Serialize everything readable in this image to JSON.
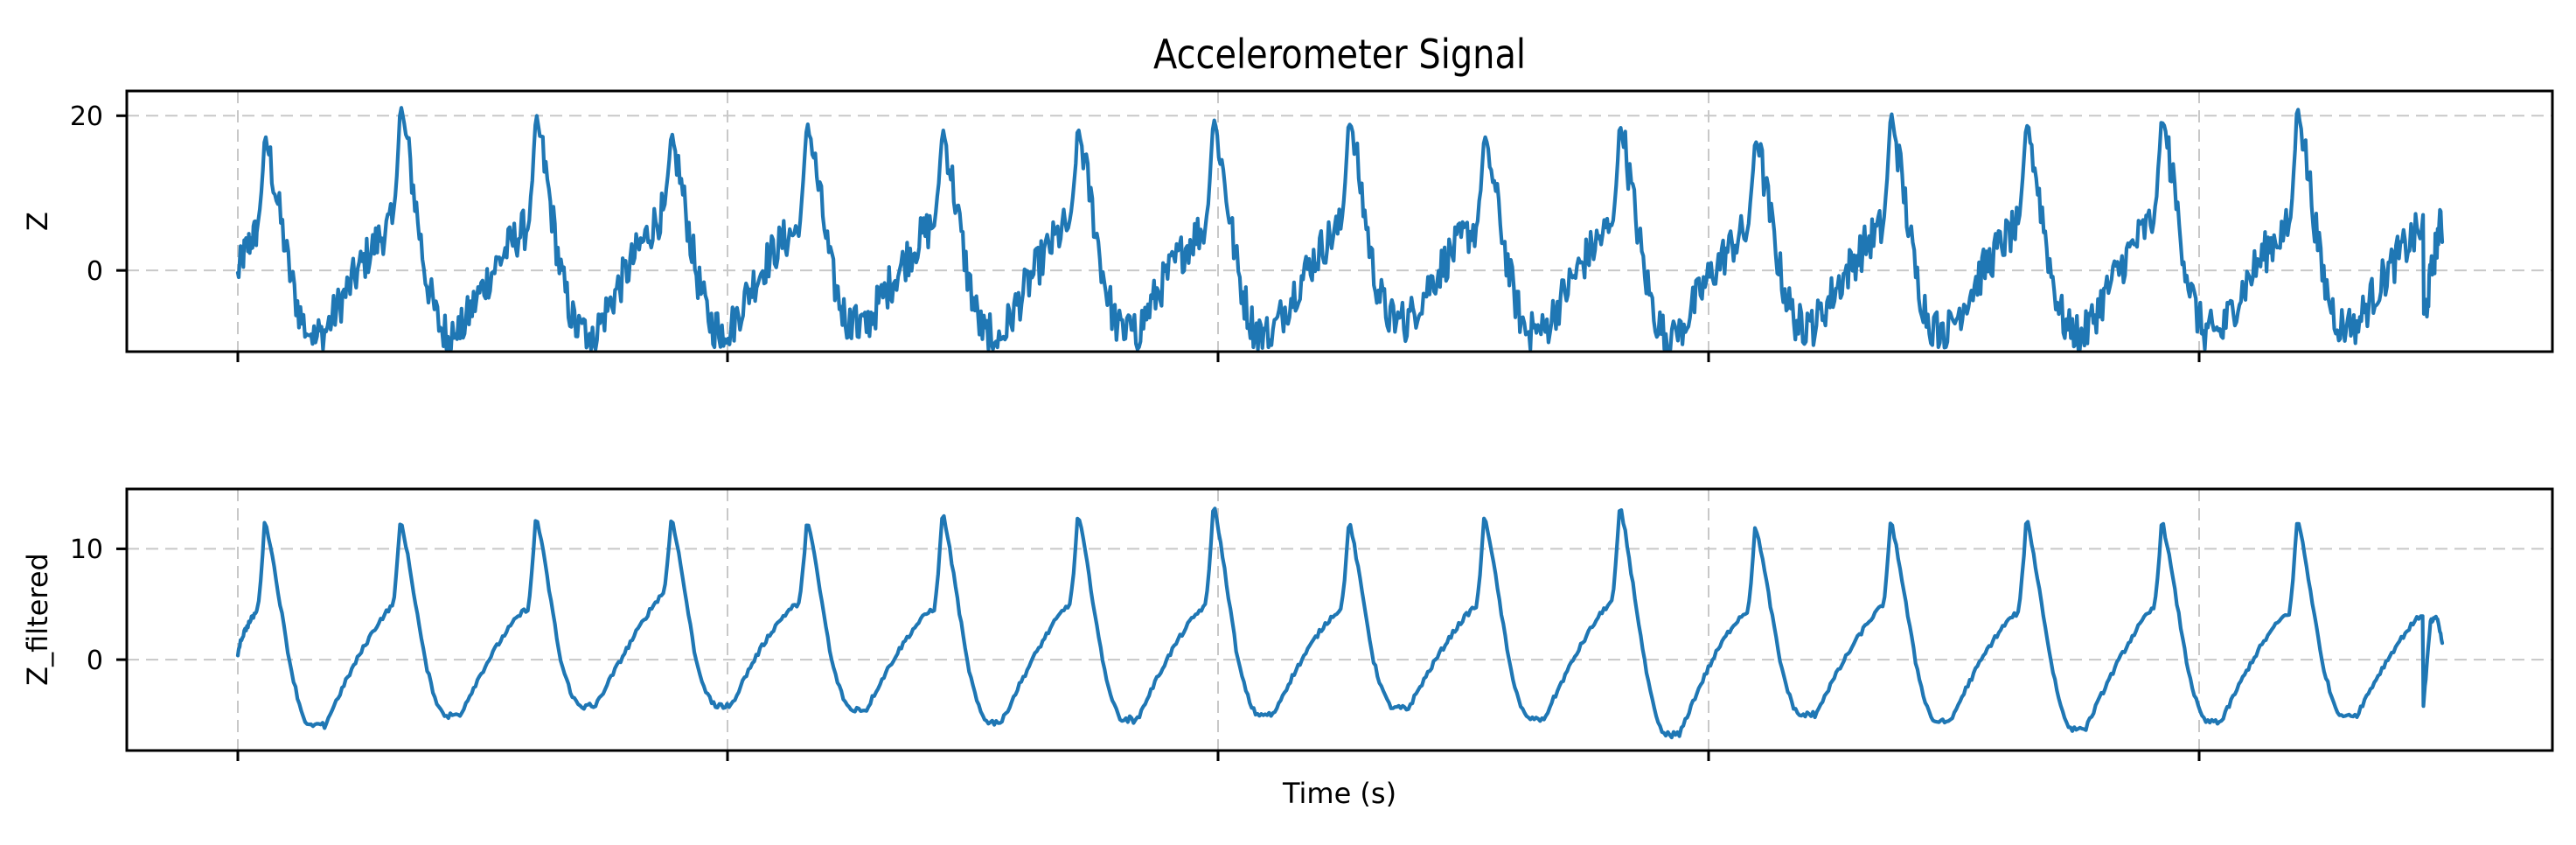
{
  "figure": {
    "title": "Accelerometer Signal",
    "xlabel": "Time (s)",
    "line_color": "#1f77b4",
    "grid_color": "#c8c8c8"
  },
  "chart_data": [
    {
      "type": "line",
      "title": "Accelerometer Signal",
      "xlabel": "",
      "ylabel": "Z",
      "ylim": [
        -10.5,
        23.2
      ],
      "yticks": [
        0,
        20
      ],
      "ytick_labels": [
        "0",
        "20"
      ],
      "xtick_labels": [
        "",
        "",
        "",
        "",
        ""
      ],
      "grid": true,
      "grid_style": "dashed",
      "legend": null,
      "series": [
        {
          "name": "Z",
          "description": "Raw noisy periodic accelerometer signal, ~16 gait cycles",
          "start_value": -1.0,
          "end_value": 5.5,
          "cycles": [
            {
              "peak": 17.3,
              "trough": -8.0,
              "pre_peak_level": 5.0
            },
            {
              "peak": 21.5,
              "trough": -8.0,
              "pre_peak_level": 6.0
            },
            {
              "peak": 20.0,
              "trough": -8.0,
              "pre_peak_level": 5.5
            },
            {
              "peak": 17.5,
              "trough": -7.5,
              "pre_peak_level": 7.5
            },
            {
              "peak": 19.5,
              "trough": -7.0,
              "pre_peak_level": 5.0
            },
            {
              "peak": 18.5,
              "trough": -8.5,
              "pre_peak_level": 6.0
            },
            {
              "peak": 18.5,
              "trough": -8.0,
              "pre_peak_level": 6.0
            },
            {
              "peak": 20.0,
              "trough": -8.0,
              "pre_peak_level": 5.5
            },
            {
              "peak": 20.0,
              "trough": -6.5,
              "pre_peak_level": 5.5
            },
            {
              "peak": 17.5,
              "trough": -8.0,
              "pre_peak_level": 5.5
            },
            {
              "peak": 19.0,
              "trough": -8.0,
              "pre_peak_level": 5.5
            },
            {
              "peak": 17.5,
              "trough": -7.0,
              "pre_peak_level": 5.0
            },
            {
              "peak": 20.5,
              "trough": -7.5,
              "pre_peak_level": 5.5
            },
            {
              "peak": 19.5,
              "trough": -8.0,
              "pre_peak_level": 5.5
            },
            {
              "peak": 20.2,
              "trough": -8.0,
              "pre_peak_level": 6.5
            },
            {
              "peak": 21.5,
              "trough": -7.0,
              "pre_peak_level": 5.5
            }
          ]
        }
      ]
    },
    {
      "type": "line",
      "title": "",
      "xlabel": "Time (s)",
      "ylabel": "Z_filtered",
      "ylim": [
        -8.2,
        15.4
      ],
      "yticks": [
        0,
        10
      ],
      "ytick_labels": [
        "0",
        "10"
      ],
      "xtick_labels": [
        "",
        "",
        "",
        "",
        ""
      ],
      "grid": true,
      "grid_style": "dashed",
      "legend": null,
      "series": [
        {
          "name": "Z_filtered",
          "description": "Low-pass filtered version of Z, ~16 smooth cycles",
          "start_value": 0.4,
          "end_value": 1.5,
          "final_bump_peak": 3.8,
          "cycles": [
            {
              "peak": 12.7,
              "trough": -6.0,
              "pre_peak_level": 4.3
            },
            {
              "peak": 12.7,
              "trough": -5.0,
              "pre_peak_level": 4.8
            },
            {
              "peak": 13.1,
              "trough": -4.2,
              "pre_peak_level": 4.6
            },
            {
              "peak": 13.0,
              "trough": -4.2,
              "pre_peak_level": 6.0
            },
            {
              "peak": 12.8,
              "trough": -4.5,
              "pre_peak_level": 5.0
            },
            {
              "peak": 13.5,
              "trough": -5.6,
              "pre_peak_level": 4.6
            },
            {
              "peak": 13.2,
              "trough": -5.4,
              "pre_peak_level": 5.0
            },
            {
              "peak": 14.2,
              "trough": -5.0,
              "pre_peak_level": 4.8
            },
            {
              "peak": 12.6,
              "trough": -4.4,
              "pre_peak_level": 4.5
            },
            {
              "peak": 13.2,
              "trough": -5.4,
              "pre_peak_level": 4.8
            },
            {
              "peak": 14.0,
              "trough": -6.8,
              "pre_peak_level": 5.2
            },
            {
              "peak": 12.2,
              "trough": -5.0,
              "pre_peak_level": 4.3
            },
            {
              "peak": 12.6,
              "trough": -5.6,
              "pre_peak_level": 4.8
            },
            {
              "peak": 12.9,
              "trough": -6.2,
              "pre_peak_level": 4.2
            },
            {
              "peak": 12.7,
              "trough": -5.6,
              "pre_peak_level": 4.6
            },
            {
              "peak": 12.9,
              "trough": -5.0,
              "pre_peak_level": 4.2
            }
          ]
        }
      ]
    }
  ]
}
